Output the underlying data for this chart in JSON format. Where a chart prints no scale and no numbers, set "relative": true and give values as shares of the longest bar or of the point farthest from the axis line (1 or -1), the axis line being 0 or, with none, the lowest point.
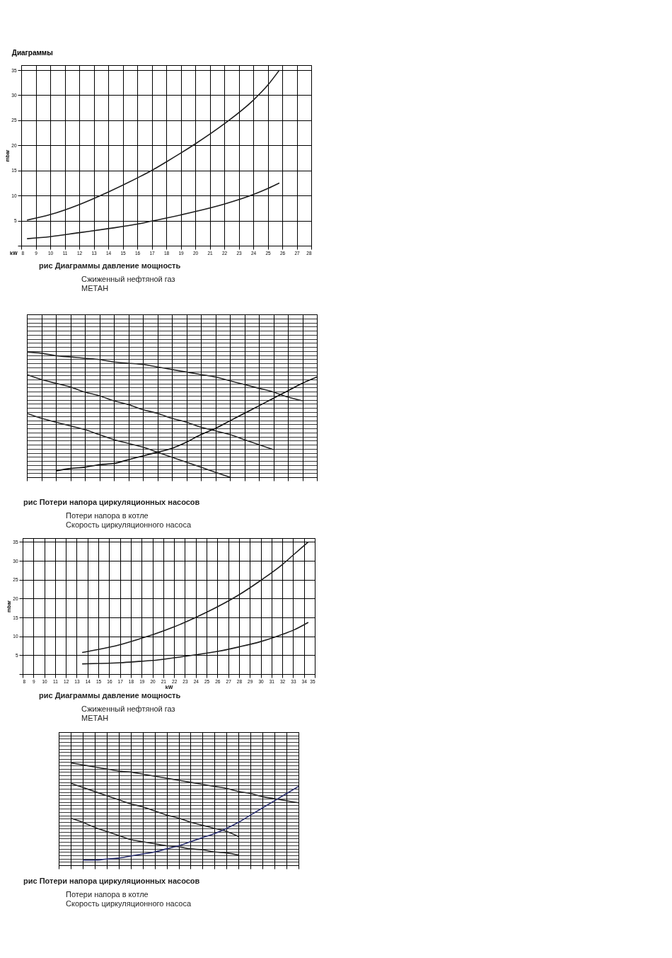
{
  "chart_data": [
    {
      "type": "line",
      "title": "Диаграммы",
      "xlabel": "kW",
      "ylabel": "mbar",
      "x": [
        8.4,
        10,
        12,
        14,
        16,
        17,
        18,
        20,
        22,
        24,
        25,
        25.8
      ],
      "xlim": [
        8,
        28
      ],
      "xticks": [
        8,
        9,
        10,
        11,
        12,
        13,
        14,
        15,
        16,
        17,
        18,
        19,
        20,
        21,
        22,
        23,
        24,
        25,
        26,
        27,
        28
      ],
      "ylim": [
        0,
        36
      ],
      "yticks": [
        {
          "value": 0,
          "label": null
        },
        5,
        10,
        15,
        20,
        25,
        30,
        35
      ],
      "grid": true,
      "series": [
        {
          "color": "#1e1e1e",
          "values": [
            5.1,
            6.2,
            8.2,
            10.7,
            13.5,
            15,
            16.7,
            20.3,
            24.3,
            29,
            32,
            35
          ]
        },
        {
          "color": "#1e1e1e",
          "values": [
            1.4,
            1.8,
            2.6,
            3.4,
            4.3,
            4.9,
            5.5,
            6.8,
            8.3,
            10.2,
            11.4,
            12.5
          ]
        }
      ],
      "annotations": [
        "рис        Диаграммы давление   мощность",
        "Сжиженный нефтяной газ",
        "МЕТАН"
      ]
    },
    {
      "type": "line",
      "relative": true,
      "grid": true,
      "categories": [
        null,
        null,
        null,
        null,
        null,
        null,
        null,
        null,
        null,
        null,
        null,
        null,
        null,
        null,
        null,
        null,
        null,
        null,
        null,
        null,
        null
      ],
      "series": [
        {
          "color": "#2a2a2a",
          "values": [
            1,
            0.99,
            0.97,
            0.96,
            0.95,
            0.94,
            0.92,
            0.91,
            0.9,
            0.88,
            0.86,
            0.84,
            0.82,
            0.8,
            0.77,
            0.74,
            0.71,
            0.68,
            0.64,
            0.61,
            null
          ]
        },
        {
          "color": "#2a2a2a",
          "values": [
            0.82,
            0.78,
            0.75,
            0.72,
            0.68,
            0.65,
            0.61,
            0.58,
            0.54,
            0.51,
            0.47,
            0.44,
            0.4,
            0.37,
            0.34,
            0.3,
            0.26,
            0.22,
            null,
            null,
            null
          ]
        },
        {
          "color": "#2a2a2a",
          "values": [
            0.51,
            0.47,
            0.44,
            0.41,
            0.38,
            0.34,
            0.3,
            0.27,
            0.24,
            0.2,
            0.16,
            0.12,
            0.08,
            0.04,
            0,
            null,
            null,
            null,
            null,
            null,
            null
          ]
        },
        {
          "color": "#111111",
          "values": [
            null,
            null,
            0.05,
            0.07,
            0.08,
            0.1,
            0.11,
            0.14,
            0.17,
            0.2,
            0.23,
            0.28,
            0.34,
            0.39,
            0.45,
            0.51,
            0.57,
            0.63,
            0.69,
            0.75,
            0.8
          ]
        }
      ],
      "annotations": [
        "рис        Потери напора циркуляционных насосов",
        "Потери напора в котле",
        "Скорость циркуляционного насоса"
      ]
    },
    {
      "type": "line",
      "xlabel": "kW",
      "ylabel": "mbar",
      "x": [
        13.5,
        15,
        17,
        19,
        20,
        22,
        24,
        26,
        28,
        30,
        32,
        33,
        34.4
      ],
      "xlim": [
        8,
        35
      ],
      "xticks": [
        8,
        9,
        10,
        11,
        12,
        13,
        14,
        15,
        16,
        17,
        18,
        19,
        20,
        21,
        22,
        23,
        24,
        25,
        26,
        27,
        28,
        29,
        30,
        31,
        32,
        33,
        34,
        35
      ],
      "ylim": [
        0,
        36
      ],
      "yticks": [
        {
          "value": 0,
          "label": null
        },
        5,
        10,
        15,
        20,
        25,
        30,
        35
      ],
      "grid": true,
      "series": [
        {
          "color": "#1e1e1e",
          "values": [
            5.7,
            6.5,
            7.8,
            9.5,
            10.4,
            12.5,
            15,
            17.8,
            21,
            24.8,
            29,
            31.5,
            35
          ]
        },
        {
          "color": "#1e1e1e",
          "values": [
            2.7,
            2.8,
            3.0,
            3.4,
            3.6,
            4.3,
            5.1,
            6.0,
            7.2,
            8.6,
            10.5,
            11.6,
            13.7
          ]
        }
      ],
      "annotations": [
        "рис        Диаграммы давление   мощность",
        "Сжиженный нефтяной газ",
        "МЕТАН"
      ]
    },
    {
      "type": "line",
      "relative": true,
      "grid": true,
      "categories": [
        null,
        null,
        null,
        null,
        null,
        null,
        null,
        null,
        null,
        null,
        null,
        null,
        null,
        null,
        null,
        null,
        null,
        null,
        null,
        null,
        null
      ],
      "series": [
        {
          "color": "#2a2a2a",
          "values": [
            null,
            1,
            0.98,
            0.96,
            0.94,
            0.92,
            0.91,
            0.89,
            0.87,
            0.85,
            0.83,
            0.81,
            0.79,
            0.77,
            0.75,
            0.72,
            0.7,
            0.67,
            0.65,
            0.63,
            0.61
          ]
        },
        {
          "color": "#2a2a2a",
          "values": [
            null,
            0.8,
            0.76,
            0.72,
            0.68,
            0.64,
            0.6,
            0.57,
            0.53,
            0.49,
            0.46,
            0.42,
            0.39,
            0.36,
            0.33,
            0.28,
            null,
            null,
            null,
            null,
            null
          ]
        },
        {
          "color": "#2a2a2a",
          "values": [
            null,
            0.46,
            0.42,
            0.37,
            0.33,
            0.29,
            0.25,
            0.23,
            0.21,
            0.19,
            0.18,
            0.16,
            0.15,
            0.13,
            0.12,
            0.1,
            null,
            null,
            null,
            null,
            null
          ]
        },
        {
          "color": "#2a2f6e",
          "values": [
            null,
            null,
            0.05,
            0.05,
            0.06,
            0.07,
            0.09,
            0.11,
            0.13,
            0.16,
            0.19,
            0.23,
            0.27,
            0.31,
            0.36,
            0.42,
            0.49,
            0.56,
            0.63,
            0.7,
            0.77
          ]
        }
      ],
      "annotations": [
        "рис        Потери напора циркуляционных насосов",
        "Потери напора в котле",
        "Скорость циркуляционного насоса"
      ]
    }
  ]
}
